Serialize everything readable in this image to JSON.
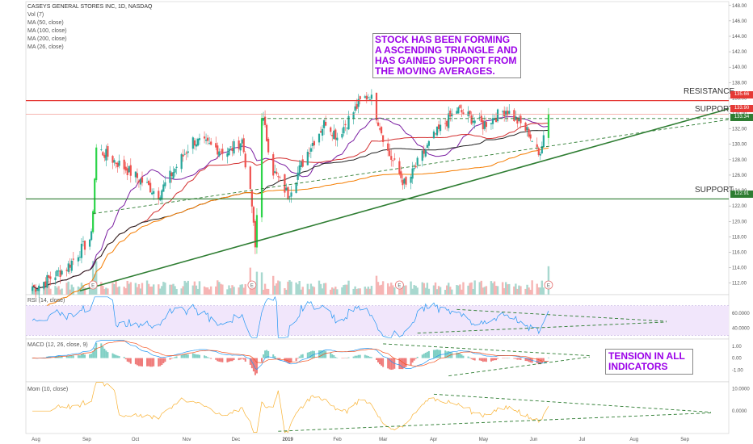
{
  "legend": {
    "title": "CASEYS GENERAL STORES INC, 1D, NASDAQ",
    "lines": [
      "Vol (7)",
      "MA (50, close)",
      "MA (100, close)",
      "MA (200, close)",
      "MA (26, close)"
    ]
  },
  "annotations": {
    "main_callout": "STOCK HAS BEEN FORMING A ASCENDING TRIANGLE AND HAS GAINED SUPPORT FROM THE MOVING AVERAGES.",
    "tension_callout": "TENSION IN ALL INDICATORS",
    "resistance_label": "RESISTANCE",
    "support_label_upper": "SUPPORT",
    "support_label_lower": "SUPPORT",
    "earnings_marker": "E"
  },
  "price_tags": {
    "resistance": "135.66",
    "last": "133.90",
    "support_upper": "133.34",
    "support_lower": "122.91"
  },
  "colors": {
    "up": "#26a69a",
    "up_bright": "#2dd44a",
    "down": "#ef5350",
    "resistance": "#e53935",
    "support": "#2e7d32",
    "ma_purple": "#7b1fa2",
    "ma_red": "#d32f2f",
    "ma_black": "#222222",
    "ma_orange": "#f57c00",
    "rsi": "#2196f3",
    "macd": "#2196f3",
    "signal": "#f4511e",
    "mom": "#f9b233"
  },
  "chart_data": [
    {
      "type": "candlestick",
      "title": "CASEYS GENERAL STORES INC, 1D, NASDAQ",
      "x_ticks": [
        "Aug",
        "Sep",
        "Oct",
        "Nov",
        "Dec",
        "2019",
        "Feb",
        "Mar",
        "Apr",
        "May",
        "Jun",
        "Jul",
        "Aug",
        "Sep"
      ],
      "y_ticks": [
        112,
        114,
        116,
        118,
        120,
        122,
        124,
        126,
        128,
        130,
        132,
        134,
        136,
        138,
        140,
        142,
        144,
        146,
        148
      ],
      "ylim": [
        110.5,
        148.5
      ],
      "resistance": 135.66,
      "support_upper": 133.34,
      "support_lower": 122.91,
      "last": 133.9,
      "key_closes": [
        {
          "date": "2018-08-01",
          "value": 111.5
        },
        {
          "date": "2018-08-20",
          "value": 114.0
        },
        {
          "date": "2018-09-04",
          "value": 118.0
        },
        {
          "date": "2018-09-07",
          "value": 129.5
        },
        {
          "date": "2018-09-24",
          "value": 127.0
        },
        {
          "date": "2018-10-15",
          "value": 123.5
        },
        {
          "date": "2018-11-05",
          "value": 130.5
        },
        {
          "date": "2018-11-26",
          "value": 129.0
        },
        {
          "date": "2018-12-05",
          "value": 130.5
        },
        {
          "date": "2018-12-11",
          "value": 122.0
        },
        {
          "date": "2018-12-13",
          "value": 116.5
        },
        {
          "date": "2018-12-17",
          "value": 134.0
        },
        {
          "date": "2018-12-24",
          "value": 126.5
        },
        {
          "date": "2019-01-02",
          "value": 123.5
        },
        {
          "date": "2019-01-15",
          "value": 129.5
        },
        {
          "date": "2019-01-25",
          "value": 133.0
        },
        {
          "date": "2019-02-01",
          "value": 131.0
        },
        {
          "date": "2019-02-15",
          "value": 135.5
        },
        {
          "date": "2019-02-21",
          "value": 136.5
        },
        {
          "date": "2019-03-04",
          "value": 129.0
        },
        {
          "date": "2019-03-15",
          "value": 124.5
        },
        {
          "date": "2019-03-22",
          "value": 127.5
        },
        {
          "date": "2019-04-01",
          "value": 131.0
        },
        {
          "date": "2019-04-15",
          "value": 134.5
        },
        {
          "date": "2019-05-01",
          "value": 132.5
        },
        {
          "date": "2019-05-15",
          "value": 134.5
        },
        {
          "date": "2019-05-29",
          "value": 131.5
        },
        {
          "date": "2019-06-04",
          "value": 128.5
        },
        {
          "date": "2019-06-10",
          "value": 133.9
        }
      ]
    },
    {
      "type": "line",
      "title": "RSI (14, close)",
      "y_ticks": [
        "60.0000",
        "40.0000"
      ],
      "ylim": [
        25,
        85
      ]
    },
    {
      "type": "bar",
      "title": "MACD (12, 26, close, 9)",
      "y_ticks": [
        "1.00",
        "0.00",
        "-1.00"
      ],
      "ylim": [
        -2,
        1.6
      ]
    },
    {
      "type": "line",
      "title": "Mom (10, close)",
      "y_ticks": [
        "10.0000",
        "0.0000"
      ],
      "ylim": [
        -10,
        13
      ]
    }
  ]
}
